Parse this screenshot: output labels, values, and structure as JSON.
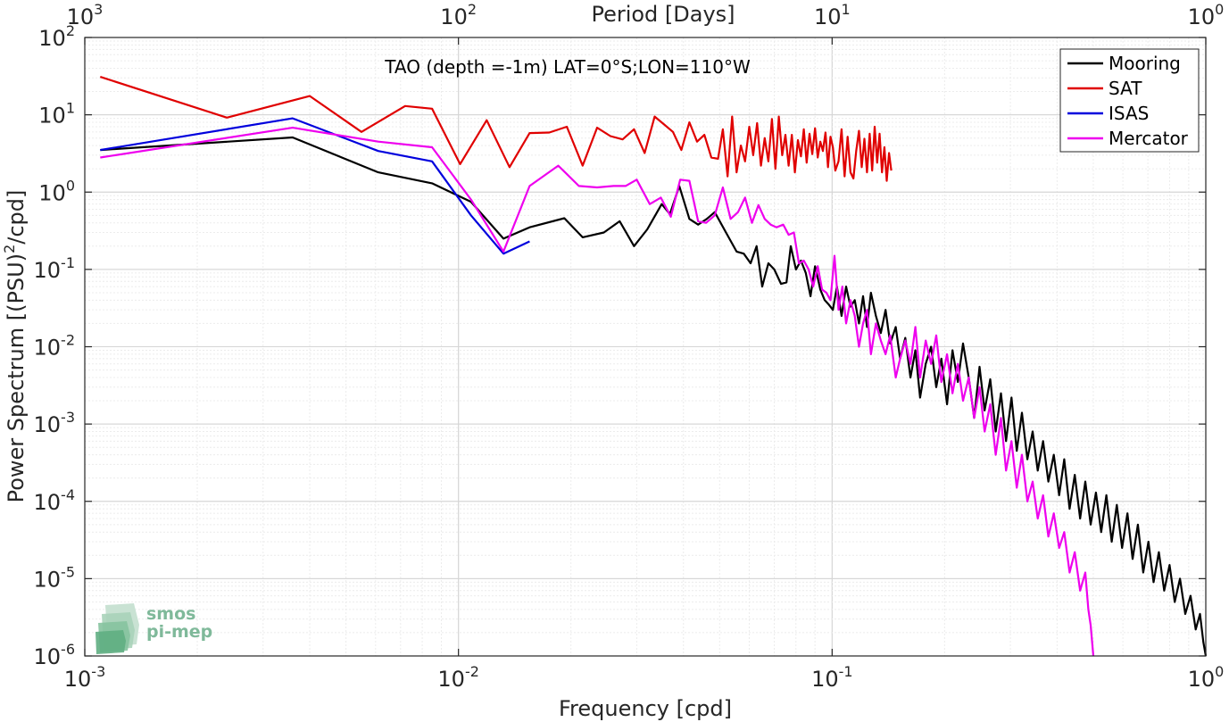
{
  "chart_data": {
    "type": "line",
    "title": "TAO (depth =-1m) LAT=0°S;LON=110°W",
    "xlabel": "Frequency [cpd]",
    "ylabel": "Power Spectrum [(PSU)2/cpd]",
    "ylabel_parts": {
      "base": "Power Spectrum [(PSU)",
      "sup": "2",
      "tail": "/cpd]"
    },
    "top_xlabel": "Period [Days]",
    "x_scale": "log",
    "y_scale": "log",
    "xlim": [
      0.001,
      1
    ],
    "ylim": [
      1e-06,
      100
    ],
    "x_ticks": [
      {
        "b": "10",
        "e": "-3",
        "v": 0.001
      },
      {
        "b": "10",
        "e": "-2",
        "v": 0.01
      },
      {
        "b": "10",
        "e": "-1",
        "v": 0.1
      },
      {
        "b": "10",
        "e": "0",
        "v": 1
      }
    ],
    "y_ticks": [
      {
        "b": "10",
        "e": "2",
        "v": 100
      },
      {
        "b": "10",
        "e": "1",
        "v": 10
      },
      {
        "b": "10",
        "e": "0",
        "v": 1
      },
      {
        "b": "10",
        "e": "-1",
        "v": 0.1
      },
      {
        "b": "10",
        "e": "-2",
        "v": 0.01
      },
      {
        "b": "10",
        "e": "-3",
        "v": 0.001
      },
      {
        "b": "10",
        "e": "-4",
        "v": 0.0001
      },
      {
        "b": "10",
        "e": "-5",
        "v": 1e-05
      },
      {
        "b": "10",
        "e": "-6",
        "v": 1e-06
      }
    ],
    "top_ticks": [
      {
        "b": "10",
        "e": "3",
        "v": 0.001
      },
      {
        "b": "10",
        "e": "2",
        "v": 0.01
      },
      {
        "b": "10",
        "e": "1",
        "v": 0.1
      },
      {
        "b": "10",
        "e": "0",
        "v": 1
      }
    ],
    "grid": true,
    "legend_position": "top-right",
    "series": [
      {
        "name": "Mooring",
        "color": "#000000",
        "x": [
          0.0011,
          0.0036,
          0.0061,
          0.0085,
          0.0108,
          0.0132,
          0.0155,
          0.0192,
          0.0215,
          0.0245,
          0.027,
          0.0295,
          0.032,
          0.035,
          0.0368,
          0.039,
          0.0415,
          0.0438,
          0.0462,
          0.0485,
          0.052,
          0.0555,
          0.058,
          0.0605,
          0.0628,
          0.065,
          0.0675,
          0.07,
          0.073,
          0.0755,
          0.0775,
          0.08,
          0.0825,
          0.085,
          0.0875,
          0.09,
          0.093,
          0.0955,
          0.098,
          0.1005,
          0.103,
          0.106,
          0.109,
          0.112,
          0.115,
          0.118,
          0.121,
          0.124,
          0.127,
          0.131,
          0.135,
          0.139,
          0.143,
          0.148,
          0.152,
          0.157,
          0.162,
          0.167,
          0.172,
          0.178,
          0.184,
          0.19,
          0.196,
          0.203,
          0.21,
          0.217,
          0.224,
          0.232,
          0.24,
          0.248,
          0.256,
          0.265,
          0.274,
          0.283,
          0.292,
          0.302,
          0.312,
          0.322,
          0.333,
          0.344,
          0.355,
          0.367,
          0.379,
          0.392,
          0.405,
          0.418,
          0.432,
          0.446,
          0.461,
          0.476,
          0.492,
          0.508,
          0.525,
          0.542,
          0.56,
          0.578,
          0.597,
          0.617,
          0.637,
          0.658,
          0.68,
          0.702,
          0.725,
          0.749,
          0.774,
          0.8,
          0.826,
          0.853,
          0.881,
          0.91,
          0.94,
          0.965,
          0.985,
          1.0
        ],
        "y": [
          3.5,
          5.1,
          1.8,
          1.3,
          0.75,
          0.25,
          0.35,
          0.46,
          0.26,
          0.3,
          0.42,
          0.2,
          0.33,
          0.7,
          0.52,
          1.2,
          0.45,
          0.38,
          0.45,
          0.55,
          0.3,
          0.17,
          0.16,
          0.12,
          0.2,
          0.06,
          0.12,
          0.1,
          0.065,
          0.068,
          0.2,
          0.1,
          0.13,
          0.09,
          0.045,
          0.11,
          0.055,
          0.04,
          0.035,
          0.03,
          0.06,
          0.025,
          0.06,
          0.033,
          0.04,
          0.02,
          0.045,
          0.018,
          0.05,
          0.025,
          0.015,
          0.03,
          0.011,
          0.018,
          0.007,
          0.013,
          0.004,
          0.009,
          0.0022,
          0.006,
          0.01,
          0.003,
          0.007,
          0.0018,
          0.009,
          0.0035,
          0.011,
          0.004,
          0.0012,
          0.0055,
          0.0015,
          0.0038,
          0.0008,
          0.0025,
          0.0006,
          0.0022,
          0.00045,
          0.0014,
          0.00035,
          0.0008,
          0.00025,
          0.0006,
          0.00018,
          0.0004,
          0.00012,
          0.00035,
          8e-05,
          0.00022,
          6e-05,
          0.00018,
          5e-05,
          0.00013,
          4e-05,
          0.00012,
          3e-05,
          9e-05,
          2.5e-05,
          7e-05,
          1.8e-05,
          5e-05,
          1.2e-05,
          3e-05,
          9e-06,
          2.2e-05,
          7e-06,
          1.5e-05,
          5e-06,
          1e-05,
          3.5e-06,
          6e-06,
          2.2e-06,
          3.5e-06,
          1.5e-06,
          9e-07
        ]
      },
      {
        "name": "SAT",
        "color": "#e00000",
        "x": [
          0.0011,
          0.0024,
          0.004,
          0.0055,
          0.0072,
          0.0085,
          0.0101,
          0.0119,
          0.0137,
          0.0155,
          0.0175,
          0.0195,
          0.0215,
          0.0235,
          0.0255,
          0.0275,
          0.0295,
          0.0315,
          0.0335,
          0.0355,
          0.0375,
          0.0395,
          0.0415,
          0.0435,
          0.0455,
          0.0475,
          0.0495,
          0.051,
          0.0525,
          0.054,
          0.0555,
          0.057,
          0.0585,
          0.06,
          0.0615,
          0.063,
          0.0645,
          0.066,
          0.0675,
          0.069,
          0.0705,
          0.072,
          0.0735,
          0.075,
          0.0765,
          0.078,
          0.0795,
          0.081,
          0.0825,
          0.084,
          0.0855,
          0.087,
          0.0885,
          0.09,
          0.0915,
          0.093,
          0.0945,
          0.096,
          0.0975,
          0.099,
          0.1005,
          0.102,
          0.104,
          0.106,
          0.108,
          0.11,
          0.112,
          0.114,
          0.116,
          0.118,
          0.12,
          0.122,
          0.124,
          0.126,
          0.128,
          0.13,
          0.132,
          0.134,
          0.136,
          0.138,
          0.14,
          0.142,
          0.144
        ],
        "y": [
          31,
          9.2,
          17.5,
          6,
          13,
          12,
          2.3,
          8.5,
          2.1,
          5.8,
          5.9,
          7,
          2.2,
          6.8,
          5.3,
          4.8,
          6.5,
          3.2,
          9.5,
          7.5,
          6,
          3.5,
          8,
          4.5,
          5.5,
          2.8,
          2.7,
          6.5,
          1.6,
          9.5,
          1.8,
          4,
          2.5,
          7,
          3,
          7.8,
          2.2,
          5,
          2.5,
          8.8,
          2,
          9.5,
          3,
          5.5,
          2.2,
          5.5,
          1.8,
          4.7,
          2.9,
          6.5,
          2.4,
          5.7,
          3.1,
          6.7,
          2.8,
          4.5,
          3.4,
          5.9,
          2.1,
          5.2,
          3.8,
          1.9,
          2.5,
          6.5,
          1.6,
          5.2,
          1.8,
          1.5,
          3.4,
          6.2,
          2.1,
          4.9,
          1.8,
          5.7,
          1.9,
          7,
          2.4,
          5.7,
          1.8,
          3.8,
          1.4,
          3.2,
          1.9
        ]
      },
      {
        "name": "ISAS",
        "color": "#0000dd",
        "x": [
          0.0011,
          0.0036,
          0.0061,
          0.0085,
          0.0108,
          0.0132,
          0.0155
        ],
        "y": [
          3.5,
          9,
          3.4,
          2.5,
          0.5,
          0.16,
          0.23
        ]
      },
      {
        "name": "Mercator",
        "color": "#ee00ee",
        "x": [
          0.0011,
          0.0036,
          0.0061,
          0.0085,
          0.0108,
          0.0132,
          0.0155,
          0.0185,
          0.021,
          0.0235,
          0.026,
          0.028,
          0.03,
          0.0325,
          0.0348,
          0.037,
          0.0392,
          0.0415,
          0.0438,
          0.046,
          0.0485,
          0.051,
          0.0535,
          0.056,
          0.0585,
          0.061,
          0.0635,
          0.066,
          0.0685,
          0.071,
          0.074,
          0.0765,
          0.079,
          0.0815,
          0.084,
          0.0865,
          0.089,
          0.0915,
          0.094,
          0.0965,
          0.099,
          0.1015,
          0.104,
          0.1065,
          0.109,
          0.112,
          0.115,
          0.118,
          0.121,
          0.124,
          0.127,
          0.131,
          0.135,
          0.139,
          0.143,
          0.148,
          0.152,
          0.157,
          0.162,
          0.167,
          0.172,
          0.178,
          0.184,
          0.19,
          0.196,
          0.203,
          0.21,
          0.217,
          0.224,
          0.232,
          0.24,
          0.248,
          0.256,
          0.265,
          0.274,
          0.283,
          0.292,
          0.302,
          0.312,
          0.322,
          0.333,
          0.344,
          0.355,
          0.367,
          0.379,
          0.392,
          0.405,
          0.418,
          0.432,
          0.446,
          0.461,
          0.476,
          0.485,
          0.492,
          0.5
        ],
        "y": [
          2.8,
          6.8,
          4.5,
          3.8,
          0.8,
          0.17,
          1.2,
          2.2,
          1.2,
          1.15,
          1.2,
          1.2,
          1.45,
          0.7,
          0.85,
          0.48,
          1.45,
          1.4,
          0.42,
          0.4,
          0.5,
          1.15,
          0.45,
          0.55,
          0.85,
          0.4,
          0.68,
          0.45,
          0.38,
          0.35,
          0.38,
          0.28,
          0.3,
          0.12,
          0.13,
          0.1,
          0.06,
          0.11,
          0.055,
          0.05,
          0.04,
          0.15,
          0.03,
          0.06,
          0.02,
          0.04,
          0.025,
          0.01,
          0.02,
          0.03,
          0.008,
          0.02,
          0.012,
          0.008,
          0.014,
          0.004,
          0.007,
          0.012,
          0.006,
          0.018,
          0.004,
          0.012,
          0.006,
          0.014,
          0.0035,
          0.008,
          0.0025,
          0.006,
          0.002,
          0.004,
          0.0012,
          0.003,
          0.0008,
          0.0018,
          0.0004,
          0.0012,
          0.00025,
          0.0006,
          0.00015,
          0.0004,
          0.0001,
          0.00018,
          6e-05,
          0.00012,
          3.5e-05,
          7e-05,
          2.5e-05,
          4e-05,
          1.2e-05,
          2.2e-05,
          7e-06,
          1.2e-05,
          4e-06,
          2.5e-06,
          1e-06
        ]
      }
    ]
  },
  "logo": {
    "line1": "smos",
    "line2": "pi-mep"
  }
}
